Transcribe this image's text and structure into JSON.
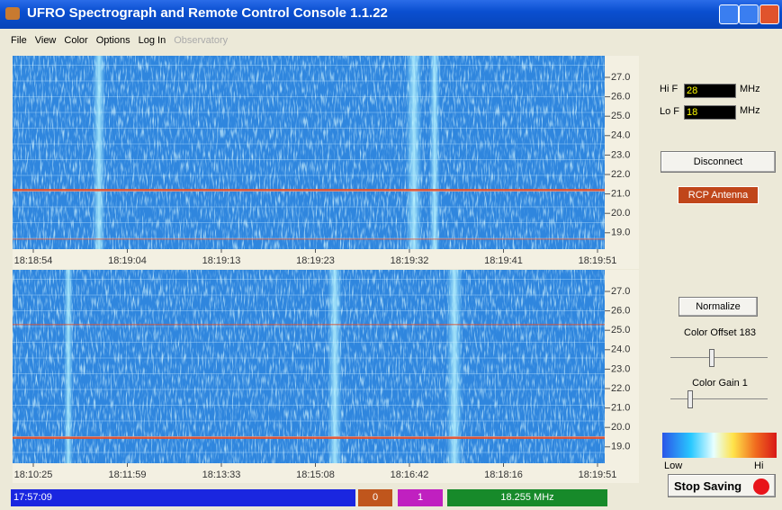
{
  "window": {
    "title": "UFRO Spectrograph and Remote Control Console 1.1.22",
    "menu": [
      "File",
      "View",
      "Color",
      "Options",
      "Log In",
      "Observatory"
    ]
  },
  "spectrogram_top": {
    "freq_labels": [
      "27.0",
      "26.0",
      "25.0",
      "24.0",
      "23.0",
      "22.0",
      "21.0",
      "20.0",
      "19.0"
    ],
    "time_labels": [
      "18:18:54",
      "18:19:04",
      "18:19:13",
      "18:19:23",
      "18:19:32",
      "18:19:41",
      "18:19:51"
    ]
  },
  "spectrogram_bottom": {
    "freq_labels": [
      "27.0",
      "26.0",
      "25.0",
      "24.0",
      "23.0",
      "22.0",
      "21.0",
      "20.0",
      "19.0"
    ],
    "time_labels": [
      "18:10:25",
      "18:11:59",
      "18:13:33",
      "18:15:08",
      "18:16:42",
      "18:18:16",
      "18:19:51"
    ]
  },
  "controls": {
    "hi_f_label": "Hi F",
    "hi_f_value": "28",
    "hi_f_unit": "MHz",
    "lo_f_label": "Lo F",
    "lo_f_value": "18",
    "lo_f_unit": "MHz",
    "disconnect": "Disconnect",
    "antenna": "RCP Antenna",
    "normalize": "Normalize",
    "color_offset": "Color Offset 183",
    "color_gain": "Color Gain 1",
    "scale_low": "Low",
    "scale_high": "Hi",
    "stop_saving": "Stop Saving"
  },
  "status_bar": {
    "time": "17:57:09",
    "counter_a": "0",
    "counter_b": "1",
    "frequency": "18.255 MHz"
  }
}
